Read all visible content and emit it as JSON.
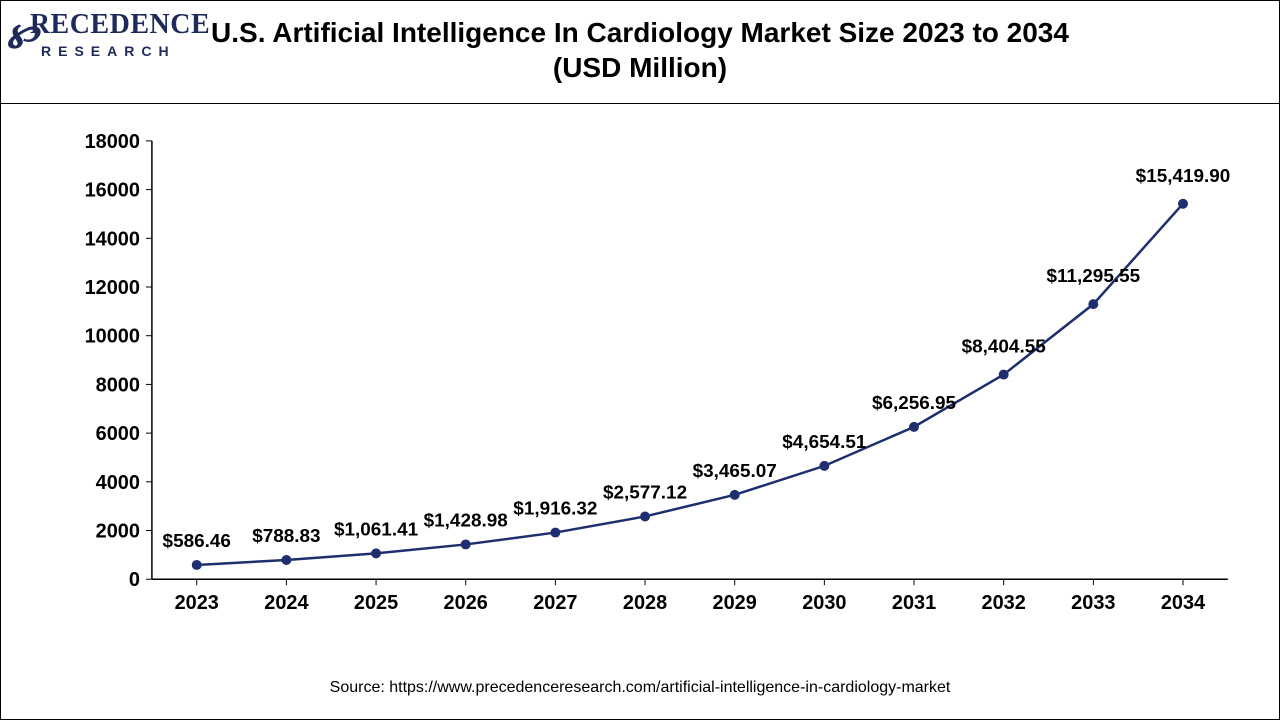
{
  "logo": {
    "brand_line1": "RECEDENCE",
    "brand_line2": "RESEARCH",
    "color": "#1e2a5a"
  },
  "title": "U.S. Artificial Intelligence In Cardiology Market Size 2023 to 2034 (USD Million)",
  "source": "Source: https://www.precedenceresearch.com/artificial-intelligence-in-cardiology-market",
  "chart": {
    "type": "line",
    "categories": [
      "2023",
      "2024",
      "2025",
      "2026",
      "2027",
      "2028",
      "2029",
      "2030",
      "2031",
      "2032",
      "2033",
      "2034"
    ],
    "values": [
      586.46,
      788.83,
      1061.41,
      1428.98,
      1916.32,
      2577.12,
      3465.07,
      4654.51,
      6256.95,
      8404.55,
      11295.55,
      15419.9
    ],
    "data_labels": [
      "$586.46",
      "$788.83",
      "$1,061.41",
      "$1,428.98",
      "$1,916.32",
      "$2,577.12",
      "$3,465.07",
      "$4,654.51",
      "$6,256.95",
      "$8,404.55",
      "$11,295.55",
      "$15,419.90"
    ],
    "y": {
      "min": 0,
      "max": 18000,
      "step": 2000
    },
    "line_color": "#1e2e6e",
    "marker_color": "#1e2e6e",
    "marker_radius": 5,
    "line_width": 2.5,
    "background_color": "#ffffff",
    "axis_font_size": 20,
    "label_font_size": 19,
    "axis_font_weight": "bold"
  }
}
